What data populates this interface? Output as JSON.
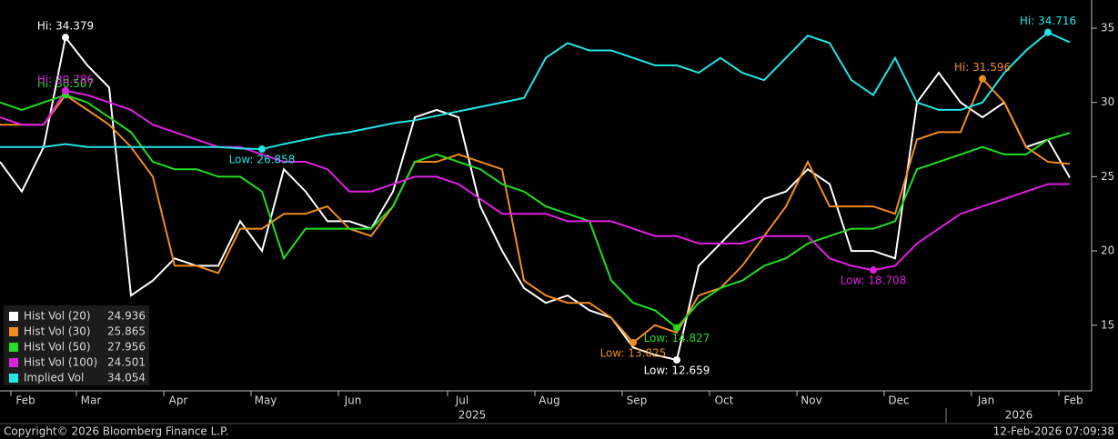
{
  "chart_data": {
    "type": "line",
    "categories": [
      null,
      "Feb",
      null,
      null,
      "Mar",
      null,
      null,
      null,
      "Apr",
      null,
      null,
      null,
      "May",
      null,
      null,
      null,
      "Jun",
      null,
      null,
      null,
      null,
      "Jul",
      null,
      null,
      null,
      "Aug",
      null,
      null,
      null,
      "Sep",
      null,
      null,
      null,
      "Oct",
      null,
      null,
      null,
      "Nov",
      null,
      null,
      null,
      "Dec",
      null,
      null,
      null,
      "Jan",
      null,
      null,
      null,
      "Feb"
    ],
    "years": [
      "2025",
      "2026"
    ],
    "series": [
      {
        "name": "Hist Vol (20)",
        "color": "#ffffff",
        "values": [
          26,
          24,
          27,
          34.379,
          32.5,
          31,
          17,
          18,
          19.5,
          19,
          19,
          22,
          20,
          25.5,
          24,
          22,
          22,
          21.5,
          24,
          29,
          29.5,
          29,
          23,
          20,
          17.5,
          16.5,
          17,
          16,
          15.5,
          13.5,
          13,
          12.659,
          19,
          20.5,
          22,
          23.5,
          24,
          25.5,
          24.5,
          20,
          20,
          19.5,
          30,
          32,
          30,
          29,
          30,
          27,
          27.5,
          24.936
        ]
      },
      {
        "name": "Hist Vol (30)",
        "color": "#f28c1e",
        "values": [
          28.5,
          28.5,
          28.5,
          30.5,
          29.5,
          28.5,
          27,
          25,
          19,
          19,
          18.5,
          21.5,
          21.5,
          22.5,
          22.5,
          23,
          21.5,
          21,
          23,
          26,
          26,
          26.5,
          26,
          25.5,
          18,
          17,
          16.5,
          16.5,
          15.5,
          13.825,
          15,
          14.5,
          17,
          17.5,
          19,
          21,
          23,
          26,
          23,
          23,
          23,
          22.5,
          27.5,
          28,
          28,
          31.596,
          30,
          27,
          26,
          25.865
        ]
      },
      {
        "name": "Hist Vol (50)",
        "color": "#22dd22",
        "values": [
          30,
          29.5,
          30,
          30.507,
          30,
          29,
          28,
          26,
          25.5,
          25.5,
          25,
          25,
          24,
          19.5,
          21.5,
          21.5,
          21.5,
          21.5,
          23,
          26,
          26.5,
          26,
          25.5,
          24.5,
          24,
          23,
          22.5,
          22,
          18,
          16.5,
          16,
          14.827,
          16.5,
          17.5,
          18,
          19,
          19.5,
          20.5,
          21,
          21.5,
          21.5,
          22,
          25.5,
          26,
          26.5,
          27,
          26.5,
          26.5,
          27.5,
          27.956
        ]
      },
      {
        "name": "Hist Vol (100)",
        "color": "#e020e0",
        "values": [
          29,
          28.5,
          28.5,
          30.786,
          30.5,
          30,
          29.5,
          28.5,
          28,
          27.5,
          27,
          27,
          26.5,
          26,
          26,
          25.5,
          24,
          24,
          24.5,
          25,
          25,
          24.5,
          23.5,
          22.5,
          22.5,
          22.5,
          22,
          22,
          22,
          21.5,
          21,
          21,
          20.5,
          20.5,
          20.5,
          21,
          21,
          21,
          19.5,
          19,
          18.708,
          19,
          20.5,
          21.5,
          22.5,
          23,
          23.5,
          24,
          24.5,
          24.501
        ]
      },
      {
        "name": "Implied Vol",
        "color": "#22e5e5",
        "values": [
          27,
          27,
          27,
          27.2,
          27,
          27,
          27,
          27,
          27,
          27,
          27,
          26.9,
          26.858,
          27.2,
          27.5,
          27.8,
          28,
          28.3,
          28.6,
          28.8,
          29.1,
          29.4,
          29.7,
          30,
          30.3,
          33,
          34,
          33.5,
          33.5,
          33,
          32.5,
          32.5,
          32,
          33,
          32,
          31.5,
          33,
          34.5,
          34,
          31.5,
          30.5,
          33,
          30,
          29.5,
          29.5,
          30,
          32,
          33.5,
          34.716,
          34.054
        ]
      }
    ],
    "annotations": [
      {
        "text": "Hi: 34.379",
        "series": 0,
        "index": 3
      },
      {
        "text": "Low: 12.659",
        "series": 0,
        "index": 31
      },
      {
        "text": "Hi: 31.596",
        "series": 1,
        "index": 45
      },
      {
        "text": "Low: 13.825",
        "series": 1,
        "index": 29
      },
      {
        "text": "Hi: 30.507",
        "series": 2,
        "index": 3
      },
      {
        "text": "Low: 14.827",
        "series": 2,
        "index": 31
      },
      {
        "text": "Hi: 30.786",
        "series": 3,
        "index": 3
      },
      {
        "text": "Low: 18.708",
        "series": 3,
        "index": 40
      },
      {
        "text": "Low: 26.858",
        "series": 4,
        "index": 12
      },
      {
        "text": "Hi: 34.716",
        "series": 4,
        "index": 48
      }
    ],
    "ylim": [
      10.7,
      36.9
    ],
    "yticks": [
      15,
      20,
      25,
      30,
      35
    ],
    "footer_left": "Copyright© 2026 Bloomberg Finance L.P.",
    "footer_right": "12-Feb-2026 07:09:38"
  }
}
